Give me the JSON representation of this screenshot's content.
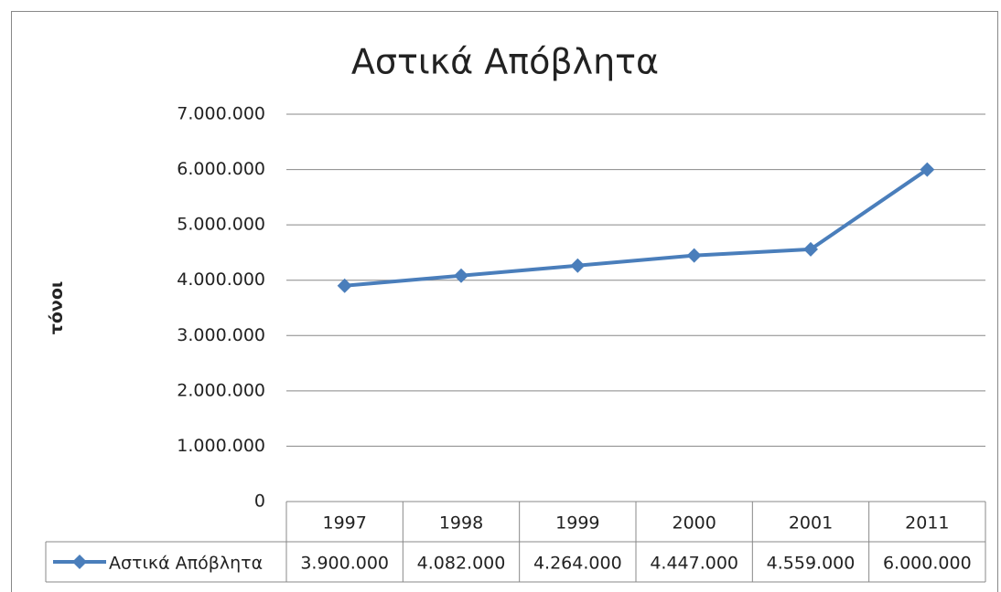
{
  "chart_data": {
    "type": "line",
    "title": "Αστικά Απόβλητα",
    "y_label": "τόνοι",
    "categories": [
      "1997",
      "1998",
      "1999",
      "2000",
      "2001",
      "2011"
    ],
    "series": [
      {
        "name": "Αστικά Απόβλητα",
        "color": "#4a7ebb",
        "values": [
          3900000,
          4082000,
          4264000,
          4447000,
          4559000,
          6000000
        ],
        "value_labels": [
          "3.900.000",
          "4.082.000",
          "4.264.000",
          "4.447.000",
          "4.559.000",
          "6.000.000"
        ]
      }
    ],
    "ylim": [
      0,
      7000000
    ],
    "yticks": [
      0,
      {
        "value": 1000000,
        "label": "1.000.000"
      },
      {
        "value": 2000000,
        "label": "2.000.000"
      },
      {
        "value": 3000000,
        "label": "3.000.000"
      },
      {
        "value": 4000000,
        "label": "4.000.000"
      },
      {
        "value": 5000000,
        "label": "5.000.000"
      },
      {
        "value": 6000000,
        "label": "6.000.000"
      },
      {
        "value": 7000000,
        "label": "7.000.000"
      }
    ],
    "grid": true,
    "data_table": true
  }
}
